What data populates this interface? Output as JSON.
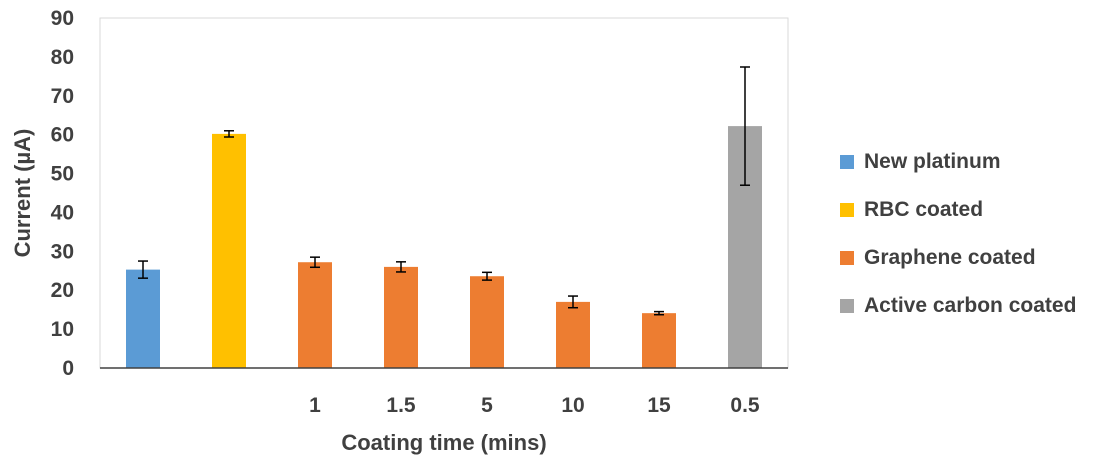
{
  "chart_data": {
    "type": "bar",
    "title": "",
    "xlabel": "Coating time (mins)",
    "ylabel": "Current (µA)",
    "ylim": [
      0,
      90
    ],
    "yticks": [
      "0",
      "10",
      "20",
      "30",
      "40",
      "50",
      "60",
      "70",
      "80",
      "90"
    ],
    "grid": false,
    "legend_position": "right",
    "categories": [
      "",
      "",
      "1",
      "1.5",
      "5",
      "10",
      "15",
      "0.5"
    ],
    "bars": [
      {
        "category": "",
        "value": 25.3,
        "error": 2.2,
        "series": "New platinum"
      },
      {
        "category": "",
        "value": 60.2,
        "error": 0.8,
        "series": "RBC coated"
      },
      {
        "category": "1",
        "value": 27.2,
        "error": 1.3,
        "series": "Graphene coated"
      },
      {
        "category": "1.5",
        "value": 26.0,
        "error": 1.3,
        "series": "Graphene coated"
      },
      {
        "category": "5",
        "value": 23.6,
        "error": 1.0,
        "series": "Graphene coated"
      },
      {
        "category": "10",
        "value": 17.0,
        "error": 1.5,
        "series": "Graphene coated"
      },
      {
        "category": "15",
        "value": 14.1,
        "error": 0.4,
        "series": "Graphene coated"
      },
      {
        "category": "0.5",
        "value": 62.2,
        "error": 15.2,
        "series": "Active carbon coated"
      }
    ],
    "series": [
      {
        "name": "New platinum",
        "color": "#5B9BD5"
      },
      {
        "name": "RBC coated",
        "color": "#FFC000"
      },
      {
        "name": "Graphene coated",
        "color": "#ED7D31"
      },
      {
        "name": "Active carbon coated",
        "color": "#A5A5A5"
      }
    ]
  }
}
